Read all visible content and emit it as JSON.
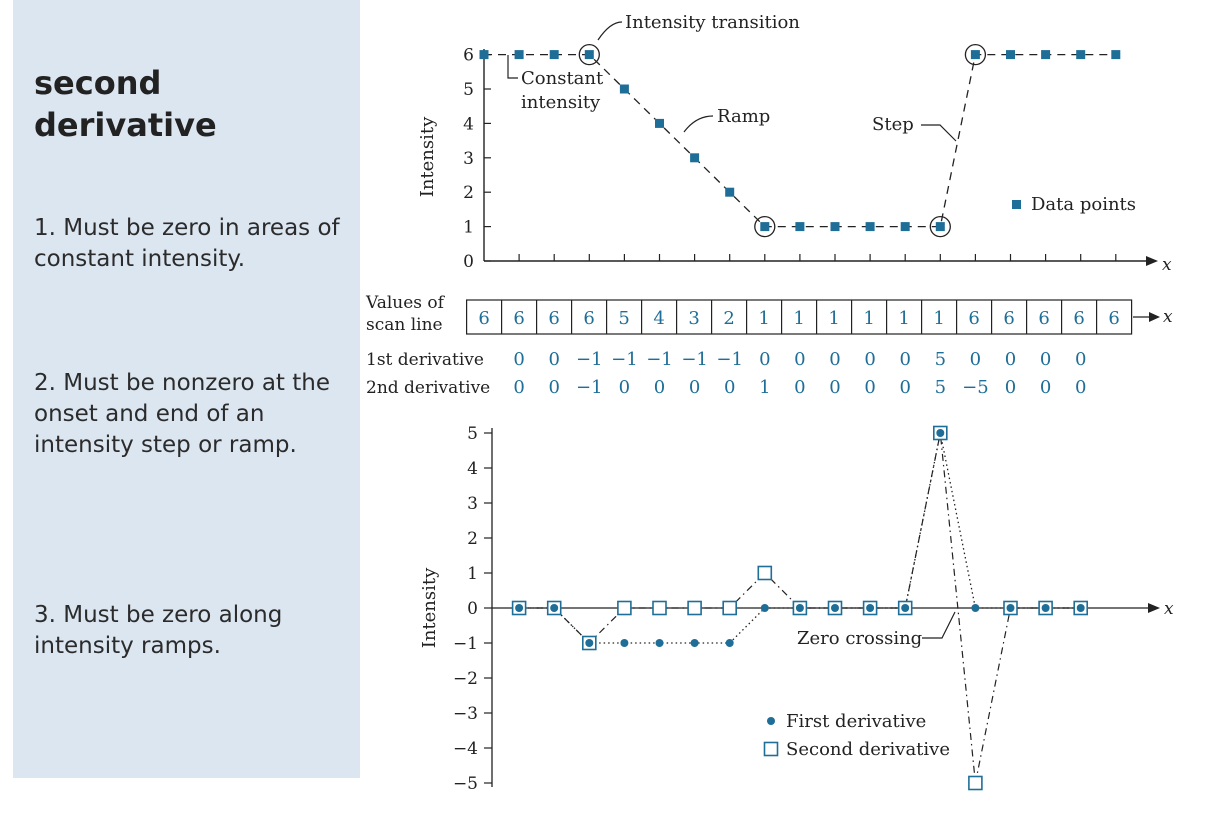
{
  "sidebar": {
    "title": "second derivative",
    "points": [
      "1. Must be zero in areas of constant intensity.",
      "2. Must be nonzero at the onset and end of an intensity step or ramp.",
      "3. Must be zero along intensity ramps."
    ]
  },
  "colors": {
    "marker": "#1f6e98",
    "line": "#222222",
    "panel": "#dce6f1"
  },
  "chart_data": [
    {
      "type": "scatter",
      "x": [
        0,
        1,
        2,
        3,
        4,
        5,
        6,
        7,
        8,
        9,
        10,
        11,
        12,
        13,
        14,
        15,
        16,
        17,
        18
      ],
      "values": [
        6,
        6,
        6,
        6,
        5,
        4,
        3,
        2,
        1,
        1,
        1,
        1,
        1,
        1,
        6,
        6,
        6,
        6,
        6
      ],
      "ylabel": "Intensity",
      "xlabel": "x",
      "ylim": [
        0,
        6
      ],
      "yticks": [
        "0",
        "1",
        "2",
        "3",
        "4",
        "5",
        "6"
      ],
      "legend": "Data points",
      "annotations": {
        "transition": "Intensity transition",
        "constant1": "Constant",
        "constant2": "intensity",
        "ramp": "Ramp",
        "step": "Step"
      }
    },
    {
      "type": "table",
      "rowlabel1": "Values of",
      "rowlabel2": "scan line",
      "values": [
        "6",
        "6",
        "6",
        "6",
        "5",
        "4",
        "3",
        "2",
        "1",
        "1",
        "1",
        "1",
        "1",
        "1",
        "6",
        "6",
        "6",
        "6",
        "6"
      ],
      "xlabel": "x",
      "d1label": "1st derivative",
      "d1": [
        "0",
        "0",
        "−1",
        "−1",
        "−1",
        "−1",
        "−1",
        "0",
        "0",
        "0",
        "0",
        "0",
        "5",
        "0",
        "0",
        "0",
        "0"
      ],
      "d2label": "2nd derivative",
      "d2": [
        "0",
        "0",
        "−1",
        "0",
        "0",
        "0",
        "0",
        "1",
        "0",
        "0",
        "0",
        "0",
        "5",
        "−5",
        "0",
        "0",
        "0"
      ]
    },
    {
      "type": "line",
      "x": [
        1,
        2,
        3,
        4,
        5,
        6,
        7,
        8,
        9,
        10,
        11,
        12,
        13,
        14,
        15,
        16,
        17
      ],
      "series": [
        {
          "name": "First derivative",
          "values": [
            0,
            0,
            -1,
            -1,
            -1,
            -1,
            -1,
            0,
            0,
            0,
            0,
            0,
            5,
            0,
            0,
            0,
            0
          ]
        },
        {
          "name": "Second derivative",
          "values": [
            0,
            0,
            -1,
            0,
            0,
            0,
            0,
            1,
            0,
            0,
            0,
            0,
            5,
            -5,
            0,
            0,
            0
          ]
        }
      ],
      "ylabel": "Intensity",
      "xlabel": "x",
      "ylim": [
        -5,
        5
      ],
      "yticks": [
        "−5",
        "−4",
        "−3",
        "−2",
        "−1",
        "0",
        "1",
        "2",
        "3",
        "4",
        "5"
      ],
      "annotations": {
        "zero_crossing": "Zero crossing"
      }
    }
  ]
}
